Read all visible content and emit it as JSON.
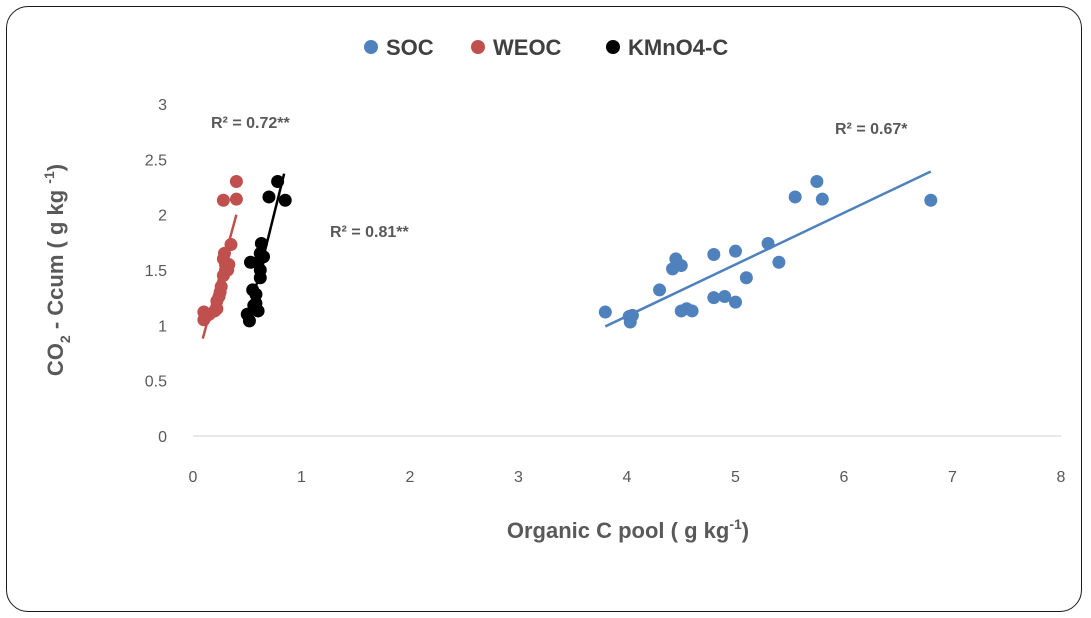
{
  "chart_data": {
    "type": "scatter",
    "xlabel": "Organic C pool ( g kg",
    "xlabel_sup": "-1",
    "xlabel_end": ")",
    "ylabel_main": "CO",
    "ylabel_sub": "2",
    "ylabel_rest": " -  Ccum ( g kg ",
    "ylabel_sup": "-1",
    "ylabel_end": ")",
    "xlim": [
      0,
      8
    ],
    "ylim": [
      0,
      3
    ],
    "xticks": [
      "0",
      "1",
      "2",
      "3",
      "4",
      "5",
      "6",
      "7",
      "8"
    ],
    "yticks": [
      "0",
      "0.5",
      "1",
      "1.5",
      "2",
      "2.5",
      "3"
    ],
    "grid": false,
    "legend_position": "top",
    "series": [
      {
        "name": "SOC",
        "color": "#4f81bd",
        "points": [
          [
            3.8,
            1.12
          ],
          [
            4.02,
            1.08
          ],
          [
            4.03,
            1.03
          ],
          [
            4.05,
            1.09
          ],
          [
            4.3,
            1.32
          ],
          [
            4.42,
            1.51
          ],
          [
            4.45,
            1.6
          ],
          [
            4.5,
            1.54
          ],
          [
            4.5,
            1.13
          ],
          [
            4.55,
            1.15
          ],
          [
            4.6,
            1.13
          ],
          [
            4.8,
            1.64
          ],
          [
            4.8,
            1.25
          ],
          [
            4.9,
            1.26
          ],
          [
            5.0,
            1.67
          ],
          [
            5.0,
            1.21
          ],
          [
            5.1,
            1.43
          ],
          [
            5.3,
            1.74
          ],
          [
            5.4,
            1.57
          ],
          [
            5.55,
            2.16
          ],
          [
            5.75,
            2.3
          ],
          [
            5.8,
            2.14
          ],
          [
            6.8,
            2.13
          ]
        ],
        "trend": {
          "x": [
            3.8,
            6.8
          ],
          "y": [
            0.99,
            2.39
          ],
          "r2_label": "R² = 0.67*"
        }
      },
      {
        "name": "WEOC",
        "color": "#c0504d",
        "points": [
          [
            0.1,
            1.05
          ],
          [
            0.1,
            1.12
          ],
          [
            0.12,
            1.08
          ],
          [
            0.15,
            1.1
          ],
          [
            0.2,
            1.13
          ],
          [
            0.22,
            1.15
          ],
          [
            0.22,
            1.22
          ],
          [
            0.24,
            1.26
          ],
          [
            0.25,
            1.3
          ],
          [
            0.26,
            1.35
          ],
          [
            0.28,
            1.45
          ],
          [
            0.28,
            1.6
          ],
          [
            0.29,
            1.65
          ],
          [
            0.3,
            1.5
          ],
          [
            0.3,
            1.55
          ],
          [
            0.32,
            1.5
          ],
          [
            0.33,
            1.55
          ],
          [
            0.35,
            1.73
          ],
          [
            0.28,
            2.13
          ],
          [
            0.4,
            2.3
          ],
          [
            0.4,
            2.14
          ]
        ],
        "trend": {
          "x": [
            0.09,
            0.4
          ],
          "y": [
            0.88,
            2.0
          ],
          "r2_label": "R² = 0.72**"
        }
      },
      {
        "name": "KMnO4-C",
        "color": "#000000",
        "points": [
          [
            0.5,
            1.1
          ],
          [
            0.52,
            1.04
          ],
          [
            0.53,
            1.57
          ],
          [
            0.55,
            1.32
          ],
          [
            0.56,
            1.18
          ],
          [
            0.58,
            1.28
          ],
          [
            0.58,
            1.2
          ],
          [
            0.6,
            1.13
          ],
          [
            0.6,
            1.57
          ],
          [
            0.62,
            1.5
          ],
          [
            0.62,
            1.43
          ],
          [
            0.62,
            1.65
          ],
          [
            0.63,
            1.74
          ],
          [
            0.65,
            1.62
          ],
          [
            0.7,
            2.16
          ],
          [
            0.78,
            2.3
          ],
          [
            0.85,
            2.13
          ]
        ],
        "trend": {
          "x": [
            0.5,
            0.84
          ],
          "y": [
            1.03,
            2.37
          ],
          "r2_label": "R² = 0.81**"
        }
      }
    ]
  }
}
